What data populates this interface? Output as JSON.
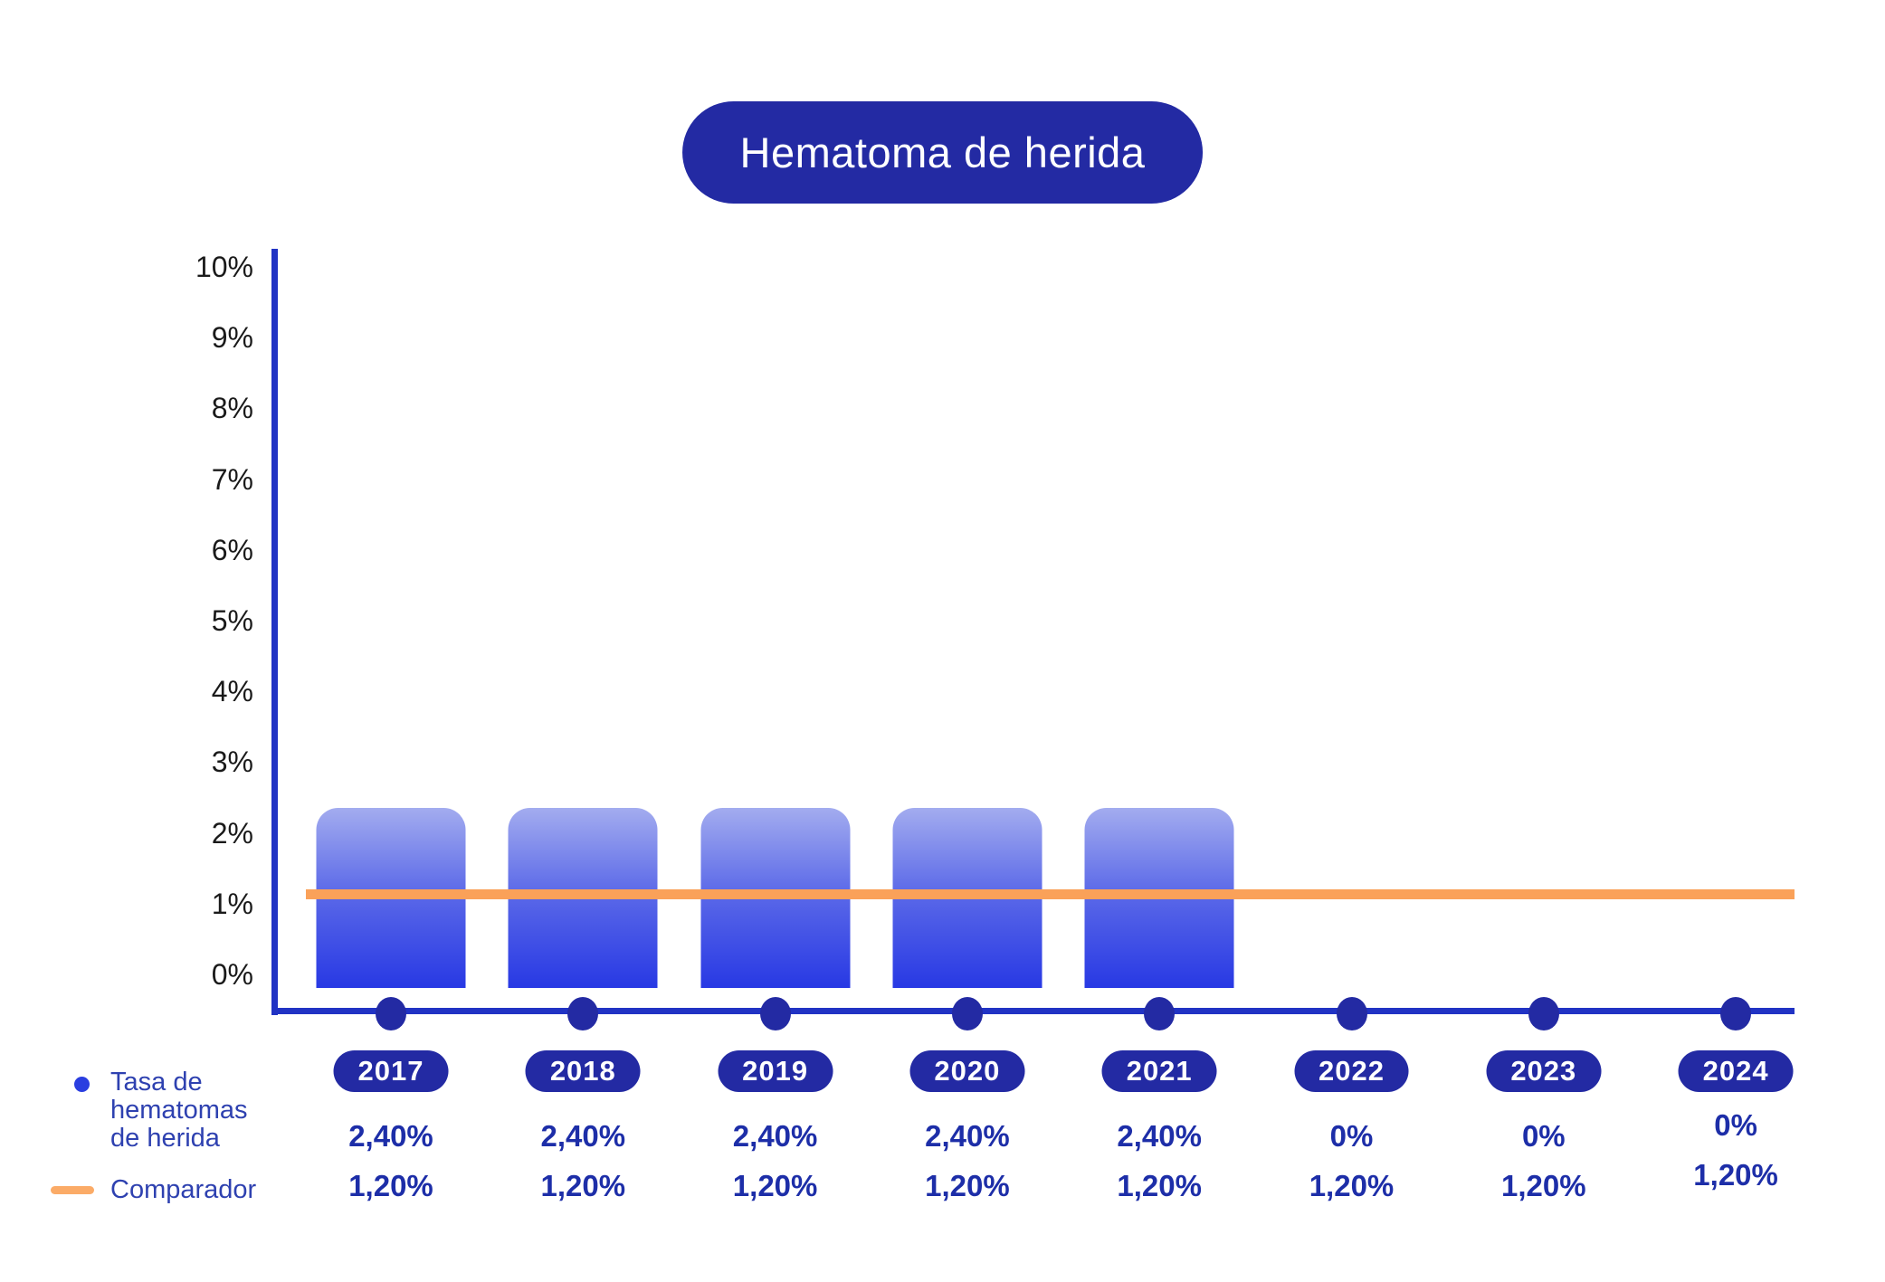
{
  "title": "Hematoma de herida",
  "colors": {
    "deep_blue": "#232aa3",
    "axis_blue": "#2133c4",
    "bullet_blue": "#2a3ee0",
    "legend_blue": "#2e41b0",
    "value_blue": "#1d2ea8",
    "tick_text": "#1a1a1a",
    "orange": "#faa159",
    "orange_light": "#fbab67",
    "bar_top": "#a3acef",
    "bar_mid": "#5a68e8",
    "bar_bottom": "#2839e4"
  },
  "y_axis": {
    "ticks": [
      "10%",
      "9%",
      "8%",
      "7%",
      "6%",
      "5%",
      "4%",
      "3%",
      "2%",
      "1%",
      "0%"
    ]
  },
  "legend": {
    "rate_lines": [
      "Tasa de",
      "hematomas",
      "de herida"
    ],
    "comparator": "Comparador"
  },
  "columns": [
    {
      "year": "2017",
      "rate": "2,40%",
      "comparator": "1,20%",
      "value": 2.4
    },
    {
      "year": "2018",
      "rate": "2,40%",
      "comparator": "1,20%",
      "value": 2.4
    },
    {
      "year": "2019",
      "rate": "2,40%",
      "comparator": "1,20%",
      "value": 2.4
    },
    {
      "year": "2020",
      "rate": "2,40%",
      "comparator": "1,20%",
      "value": 2.4
    },
    {
      "year": "2021",
      "rate": "2,40%",
      "comparator": "1,20%",
      "value": 2.4
    },
    {
      "year": "2022",
      "rate": "0%",
      "comparator": "1,20%",
      "value": 0
    },
    {
      "year": "2023",
      "rate": "0%",
      "comparator": "1,20%",
      "value": 0
    },
    {
      "year": "2024",
      "rate": "0%",
      "comparator": "1,20%",
      "value": 0
    }
  ],
  "chart_data": {
    "type": "bar",
    "title": "Hematoma de herida",
    "categories": [
      "2017",
      "2018",
      "2019",
      "2020",
      "2021",
      "2022",
      "2023",
      "2024"
    ],
    "series": [
      {
        "name": "Tasa de hematomas de herida",
        "type": "bar",
        "values": [
          2.4,
          2.4,
          2.4,
          2.4,
          2.4,
          0,
          0,
          0
        ],
        "labels": [
          "2,40%",
          "2,40%",
          "2,40%",
          "2,40%",
          "2,40%",
          "0%",
          "0%",
          "0%"
        ],
        "color": "#2839e4"
      },
      {
        "name": "Comparador",
        "type": "line",
        "values": [
          1.2,
          1.2,
          1.2,
          1.2,
          1.2,
          1.2,
          1.2,
          1.2
        ],
        "labels": [
          "1,20%",
          "1,20%",
          "1,20%",
          "1,20%",
          "1,20%",
          "1,20%",
          "1,20%",
          "1,20%"
        ],
        "color": "#faa159"
      }
    ],
    "xlabel": "",
    "ylabel": "",
    "ylim": [
      0,
      10
    ],
    "y_tick_step": 1,
    "y_tick_format": "percent",
    "grid": false,
    "legend_position": "bottom-left",
    "decimal_separator": ","
  }
}
